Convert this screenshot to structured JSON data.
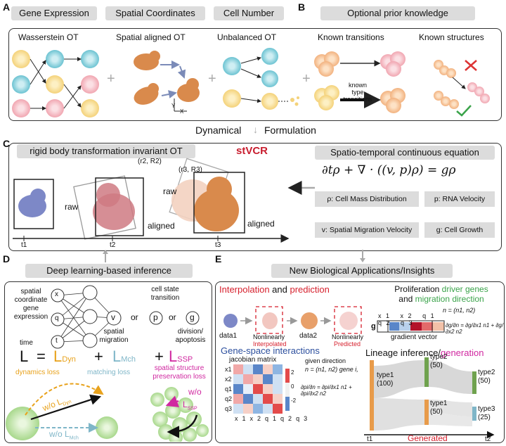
{
  "panel_a": {
    "label": "A",
    "headers": [
      "Gene Expression",
      "Spatial Coordinates",
      "Cell Number"
    ],
    "titles": [
      "Wasserstein OT",
      "Spatial aligned OT",
      "Unbalanced OT"
    ],
    "y_label": "Y",
    "x_label": "X"
  },
  "panel_b": {
    "label": "B",
    "header": "Optional prior knowledge",
    "titles": [
      "Known transitions",
      "Known structures"
    ],
    "arrow_label": "known type transitions"
  },
  "middle": {
    "left": "Dynamical",
    "right": "Formulation"
  },
  "panel_c": {
    "label": "C",
    "header": "rigid body transformation invariant OT",
    "brand": "stVCR",
    "eq_header": "Spatio-temporal continuous equation",
    "equation": "∂tρ + ∇ · ((v, p)ρ) = gρ",
    "r2": "(r2, R2)",
    "r3": "(r3, R3)",
    "raw1": "raw",
    "raw2": "raw",
    "aligned1": "aligned",
    "aligned2": "aligned",
    "t1": "t1",
    "t2": "t2",
    "t3": "t3",
    "boxes": [
      "ρ: Cell Mass Distribution",
      "p:  RNA Velocity",
      "v: Spatial Migration Velocity",
      "g: Cell Growth"
    ]
  },
  "panel_d": {
    "label": "D",
    "header": "Deep learning-based inference",
    "inputs_label": "spatial coordinate gene expression",
    "time_label": "time",
    "nodes_in": [
      "x",
      "q",
      "t"
    ],
    "out_v": "v",
    "out_p": "p",
    "out_g": "g",
    "or1": "or",
    "or2": "or",
    "cst": "cell state transition",
    "spatial_migration": "spatial migration",
    "division": "division/ apoptosis",
    "loss_L": "L",
    "eq": "=",
    "plus1": "+",
    "plus2": "+",
    "L_dyn": "L",
    "L_dyn_sub": "Dyn",
    "L_mch": "L",
    "L_mch_sub": "Mch",
    "L_ssp": "L",
    "L_ssp_sub": "SSP",
    "dyn_loss": "dynamics loss",
    "mch_loss": "matching loss",
    "ssp_loss": "spatial structure preservation loss",
    "wo_dyn": "w/o L",
    "wo_dyn_sub": "Dyn",
    "wo_mch": "w/o L",
    "wo_mch_sub": "Mch",
    "wo": "w/o",
    "l_ssp2": "L",
    "l_ssp2_sub": "SSP"
  },
  "panel_e": {
    "label": "E",
    "header": "New Biological Applications/Insights",
    "interp_title_a": "Interpolation",
    "interp_title_and": " and ",
    "interp_title_b": "prediction",
    "data1": "data1",
    "data2": "data2",
    "nonlin1": "Nonlinearly",
    "interp": "Interpolated",
    "nonlin2": "Nonlinearly",
    "pred": "Predicted",
    "prolif_a": "Proliferation ",
    "prolif_b": "driver genes",
    "prolif_c": "and ",
    "prolif_d": "migration direction",
    "n_vec": "n = (n1, n2)",
    "gene_cols": [
      "x1",
      "x2",
      "q1",
      "q2",
      "q3"
    ],
    "g_label": "g",
    "grad_vec": "gradient vector",
    "dgdn": "∂g/∂n = ∂g/∂x1 n1 + ∂g/∂x2 n2",
    "gsi_title": "Gene-space interactions",
    "jac": "jacobian matrix",
    "jac_rows": [
      "x1",
      "x2",
      "q1",
      "q2",
      "q3"
    ],
    "jac_cols": [
      "x1",
      "x2",
      "q1",
      "q2",
      "q3"
    ],
    "cb": [
      "2",
      "0",
      "-2"
    ],
    "given_dir": "given direction",
    "n_vec2": "n = (n1, n2) gene i,",
    "dpdn": "∂pi/∂n = ∂pi/∂x1 n1 + ∂pi/∂x2 n2",
    "lineage_a": "Lineage inference/",
    "lineage_b": "generation",
    "type1a": "type1",
    "type1a_n": "(100)",
    "type2a": "type2",
    "type2a_n": "(50)",
    "type1b": "type1",
    "type1b_n": "(50)",
    "type2b": "type2",
    "type2b_n": "(50)",
    "type3": "type3",
    "type3_n": "(25)",
    "t1": "t1",
    "t2": "t2",
    "generated": "Generated"
  }
}
